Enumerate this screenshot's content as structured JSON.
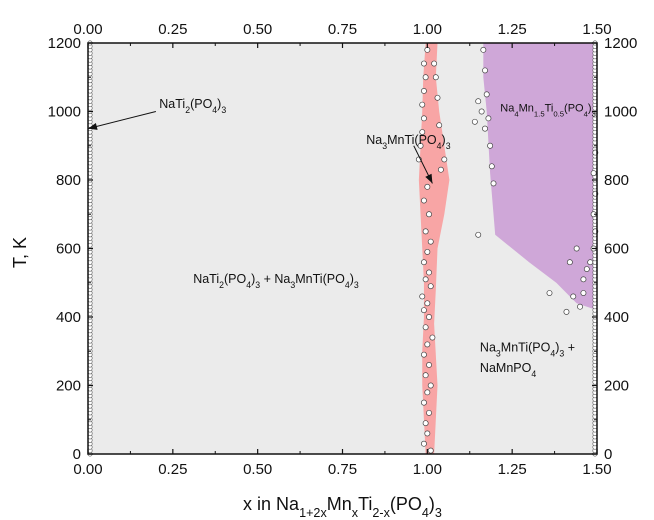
{
  "chart_data": {
    "type": "scatter",
    "xlabel_parts": [
      {
        "t": "x in Na"
      },
      {
        "t": "1+2x",
        "s": "sub"
      },
      {
        "t": "Mn"
      },
      {
        "t": "x",
        "s": "sub"
      },
      {
        "t": "Ti"
      },
      {
        "t": "2-x",
        "s": "sub"
      },
      {
        "t": "(PO"
      },
      {
        "t": "4",
        "s": "sub"
      },
      {
        "t": ")"
      },
      {
        "t": "3",
        "s": "sub"
      }
    ],
    "ylabel": "T, K",
    "xlim": [
      0,
      1.5
    ],
    "ylim": [
      0,
      1200
    ],
    "xticks": [
      "0.00",
      "0.25",
      "0.50",
      "0.75",
      "1.00",
      "1.25",
      "1.50"
    ],
    "yticks": [
      "0",
      "200",
      "400",
      "600",
      "800",
      "1000",
      "1200"
    ],
    "grid": false,
    "background_color": "#ebebeb",
    "regions": [
      {
        "name": "Na3MnTi(PO4)3",
        "color": "#f8a5a5",
        "polygon": [
          [
            1.02,
            0
          ],
          [
            1.03,
            200
          ],
          [
            1.02,
            380
          ],
          [
            1.025,
            480
          ],
          [
            1.03,
            600
          ],
          [
            1.05,
            700
          ],
          [
            1.065,
            800
          ],
          [
            1.05,
            900
          ],
          [
            1.035,
            1000
          ],
          [
            1.025,
            1100
          ],
          [
            1.03,
            1200
          ],
          [
            0.995,
            1200
          ],
          [
            0.988,
            1100
          ],
          [
            0.985,
            1000
          ],
          [
            0.98,
            900
          ],
          [
            0.975,
            800
          ],
          [
            0.98,
            700
          ],
          [
            0.985,
            600
          ],
          [
            0.99,
            500
          ],
          [
            0.99,
            400
          ],
          [
            0.985,
            300
          ],
          [
            0.985,
            200
          ],
          [
            0.99,
            100
          ],
          [
            0.995,
            0
          ]
        ]
      },
      {
        "name": "Na4Mn1.5Ti0.5(PO4)3",
        "color": "#cfa7d8",
        "polygon": [
          [
            1.165,
            1200
          ],
          [
            1.5,
            1200
          ],
          [
            1.5,
            420
          ],
          [
            1.44,
            440
          ],
          [
            1.38,
            500
          ],
          [
            1.3,
            560
          ],
          [
            1.2,
            640
          ],
          [
            1.185,
            820
          ],
          [
            1.175,
            1000
          ],
          [
            1.165,
            1100
          ]
        ]
      }
    ],
    "series": [
      {
        "marker": "open-circle",
        "points": [
          [
            0.99,
            30
          ],
          [
            1.01,
            10
          ],
          [
            1.0,
            60
          ],
          [
            0.995,
            90
          ],
          [
            1.005,
            120
          ],
          [
            0.99,
            150
          ],
          [
            1.0,
            180
          ],
          [
            1.01,
            200
          ],
          [
            0.995,
            230
          ],
          [
            1.005,
            260
          ],
          [
            0.99,
            290
          ],
          [
            1.0,
            320
          ],
          [
            1.015,
            340
          ],
          [
            0.995,
            370
          ],
          [
            1.005,
            400
          ],
          [
            0.99,
            420
          ],
          [
            1.0,
            440
          ],
          [
            0.985,
            460
          ],
          [
            1.01,
            490
          ],
          [
            0.995,
            510
          ],
          [
            1.005,
            530
          ],
          [
            0.99,
            560
          ],
          [
            1.0,
            590
          ],
          [
            1.01,
            620
          ],
          [
            0.995,
            650
          ],
          [
            1.005,
            700
          ],
          [
            0.99,
            740
          ],
          [
            1.0,
            780
          ],
          [
            0.975,
            860
          ],
          [
            0.98,
            900
          ],
          [
            0.985,
            940
          ],
          [
            0.99,
            980
          ],
          [
            0.985,
            1020
          ],
          [
            0.99,
            1060
          ],
          [
            0.995,
            1100
          ],
          [
            0.99,
            1140
          ],
          [
            1.05,
            860
          ],
          [
            1.04,
            830
          ],
          [
            1.035,
            960
          ],
          [
            1.03,
            1040
          ],
          [
            1.025,
            1100
          ],
          [
            1.02,
            1140
          ],
          [
            1.0,
            1180
          ],
          [
            1.165,
            1180
          ],
          [
            1.17,
            1120
          ],
          [
            1.175,
            1050
          ],
          [
            1.18,
            980
          ],
          [
            1.185,
            900
          ],
          [
            1.19,
            840
          ],
          [
            1.195,
            790
          ],
          [
            1.15,
            1030
          ],
          [
            1.14,
            970
          ],
          [
            1.15,
            640
          ],
          [
            1.16,
            1000
          ],
          [
            1.17,
            950
          ],
          [
            1.36,
            470
          ],
          [
            1.41,
            415
          ],
          [
            1.43,
            460
          ],
          [
            1.45,
            430
          ],
          [
            1.46,
            510
          ],
          [
            1.47,
            540
          ],
          [
            1.48,
            560
          ],
          [
            1.49,
            600
          ],
          [
            1.495,
            650
          ],
          [
            1.49,
            700
          ],
          [
            1.495,
            760
          ],
          [
            1.49,
            820
          ],
          [
            1.495,
            880
          ],
          [
            1.44,
            600
          ],
          [
            1.42,
            560
          ],
          [
            1.46,
            470
          ]
        ]
      }
    ],
    "edge_points": {
      "left_x": 0.0,
      "right_x": 1.5,
      "y_start": 0,
      "y_end": 1200,
      "step": 10
    },
    "annotations": [
      {
        "id": "nati2",
        "parts": [
          {
            "t": "NaTi"
          },
          {
            "t": "2",
            "s": "sub"
          },
          {
            "t": "(PO"
          },
          {
            "t": "4",
            "s": "sub"
          },
          {
            "t": ")"
          },
          {
            "t": "3",
            "s": "sub"
          }
        ],
        "x": 0.21,
        "y": 1010,
        "anchor": "start"
      },
      {
        "id": "na3mnti",
        "parts": [
          {
            "t": "Na"
          },
          {
            "t": "3",
            "s": "sub"
          },
          {
            "t": "MnTi(PO"
          },
          {
            "t": "4",
            "s": "sub"
          },
          {
            "t": ")"
          },
          {
            "t": "3",
            "s": "sub"
          }
        ],
        "x": 0.82,
        "y": 905,
        "anchor": "start"
      },
      {
        "id": "na4mn",
        "parts": [
          {
            "t": "Na"
          },
          {
            "t": "4",
            "s": "sub"
          },
          {
            "t": "Mn"
          },
          {
            "t": "1.5",
            "s": "sub"
          },
          {
            "t": "Ti"
          },
          {
            "t": "0.5",
            "s": "sub"
          },
          {
            "t": "(PO"
          },
          {
            "t": "4",
            "s": "sub"
          },
          {
            "t": ")"
          },
          {
            "t": "3",
            "s": "sub"
          }
        ],
        "x": 1.215,
        "y": 1000,
        "anchor": "start",
        "small": true
      },
      {
        "id": "mixture1",
        "parts": [
          {
            "t": "NaTi"
          },
          {
            "t": "2",
            "s": "sub"
          },
          {
            "t": "(PO"
          },
          {
            "t": "4",
            "s": "sub"
          },
          {
            "t": ")"
          },
          {
            "t": "3",
            "s": "sub"
          },
          {
            "t": " + Na"
          },
          {
            "t": "3",
            "s": "sub"
          },
          {
            "t": "MnTi(PO"
          },
          {
            "t": "4",
            "s": "sub"
          },
          {
            "t": ")"
          },
          {
            "t": "3",
            "s": "sub"
          }
        ],
        "x": 0.31,
        "y": 500,
        "anchor": "start"
      },
      {
        "id": "mixture2a",
        "parts": [
          {
            "t": "Na"
          },
          {
            "t": "3",
            "s": "sub"
          },
          {
            "t": "MnTi(PO"
          },
          {
            "t": "4",
            "s": "sub"
          },
          {
            "t": ")"
          },
          {
            "t": "3",
            "s": "sub"
          },
          {
            "t": " +"
          }
        ],
        "x": 1.155,
        "y": 300,
        "anchor": "start"
      },
      {
        "id": "mixture2b",
        "parts": [
          {
            "t": "NaMnPO"
          },
          {
            "t": "4",
            "s": "sub"
          }
        ],
        "x": 1.155,
        "y": 240,
        "anchor": "start"
      }
    ],
    "arrows": [
      {
        "from": [
          0.2,
          1000
        ],
        "to": [
          0.0,
          950
        ]
      },
      {
        "from": [
          0.96,
          900
        ],
        "to": [
          1.015,
          790
        ]
      }
    ]
  }
}
